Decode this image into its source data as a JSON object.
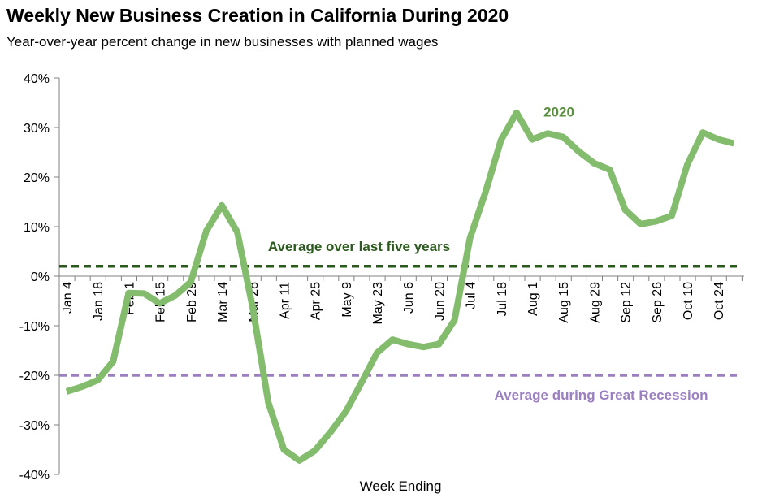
{
  "title": "Weekly New Business Creation in California During 2020",
  "subtitle": "Year-over-year percent change in new businesses with planned wages",
  "colors": {
    "series": "#82bc6c",
    "series_label": "#5a8f3e",
    "avg_five_years": "#2b5a1d",
    "avg_recession": "#9b7fc0"
  },
  "chart_data": {
    "type": "line",
    "xlabel": "Week Ending",
    "ylabel": "",
    "ylim": [
      -40,
      40
    ],
    "y_ticks": [
      40,
      30,
      20,
      10,
      0,
      -10,
      -20,
      -30,
      -40
    ],
    "y_tick_labels": [
      "40%",
      "30%",
      "20%",
      "10%",
      "0%",
      "-10%",
      "-20%",
      "-30%",
      "-40%"
    ],
    "x_tick_labels": [
      "Jan 4",
      "Jan 18",
      "Feb 1",
      "Feb 15",
      "Feb 29",
      "Mar 14",
      "Mar 28",
      "Apr 11",
      "Apr 25",
      "May 9",
      "May 23",
      "Jun 6",
      "Jun 20",
      "Jul 4",
      "Jul 18",
      "Aug 1",
      "Aug 15",
      "Aug 29",
      "Sep 12",
      "Sep 26",
      "Oct 10",
      "Oct 24"
    ],
    "series": [
      {
        "name": "2020",
        "x": [
          "Jan 4",
          "Jan 11",
          "Jan 18",
          "Jan 25",
          "Feb 1",
          "Feb 8",
          "Feb 15",
          "Feb 22",
          "Feb 29",
          "Mar 7",
          "Mar 14",
          "Mar 21",
          "Mar 28",
          "Apr 4",
          "Apr 11",
          "Apr 18",
          "Apr 25",
          "May 2",
          "May 9",
          "May 16",
          "May 23",
          "May 30",
          "Jun 6",
          "Jun 13",
          "Jun 20",
          "Jun 27",
          "Jul 4",
          "Jul 11",
          "Jul 18",
          "Jul 25",
          "Aug 1",
          "Aug 8",
          "Aug 15",
          "Aug 22",
          "Aug 29",
          "Sep 5",
          "Sep 12",
          "Sep 19",
          "Sep 26",
          "Oct 3",
          "Oct 10",
          "Oct 17",
          "Oct 24",
          "Oct 31"
        ],
        "values": [
          -23.3,
          -22.3,
          -21.0,
          -17.2,
          -3.4,
          -3.5,
          -5.5,
          -3.9,
          -1.2,
          9.1,
          14.3,
          8.9,
          -6.5,
          -25.5,
          -35.0,
          -37.2,
          -35.2,
          -31.5,
          -27.3,
          -21.5,
          -15.5,
          -12.8,
          -13.7,
          -14.3,
          -13.7,
          -8.9,
          7.7,
          17.0,
          27.5,
          33.0,
          27.6,
          28.8,
          28.1,
          25.2,
          22.8,
          21.5,
          13.4,
          10.5,
          11.1,
          12.2,
          22.5,
          29.0,
          27.6,
          26.8
        ]
      }
    ],
    "reference_lines": [
      {
        "label": "Average over last five years",
        "value": 2.0
      },
      {
        "label": "Average during Great Recession",
        "value": -20.0
      }
    ],
    "series_label": "2020",
    "grid": false
  }
}
